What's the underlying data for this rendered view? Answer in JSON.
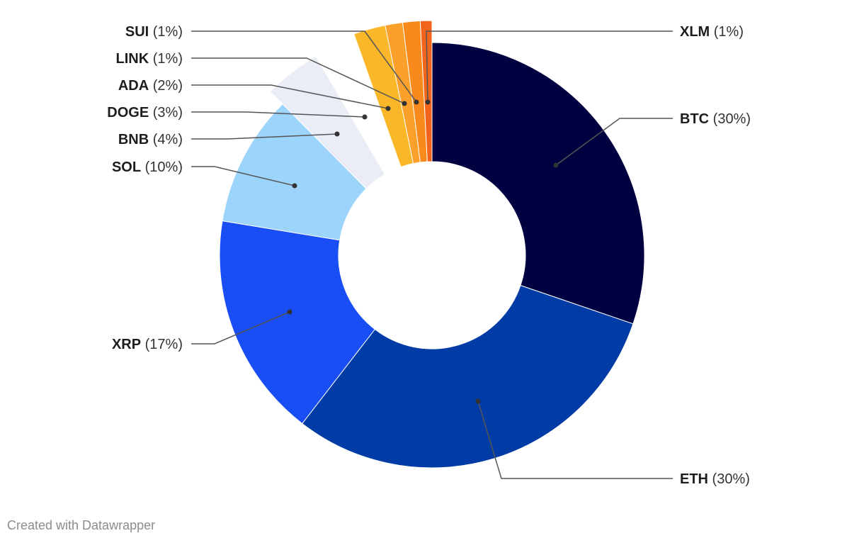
{
  "chart_data": {
    "type": "pie",
    "variant": "donut",
    "slices": [
      {
        "name": "BTC",
        "label": "(30%)",
        "value": 30.2,
        "color": "#000040"
      },
      {
        "name": "ETH",
        "label": "(30%)",
        "value": 30.2,
        "color": "#003ba6"
      },
      {
        "name": "XRP",
        "label": "(17%)",
        "value": 17.1,
        "color": "#1a4ef5"
      },
      {
        "name": "SOL",
        "label": "(10%)",
        "value": 10.0,
        "color": "#9dd4fb"
      },
      {
        "name": "BNB",
        "label": "(4%)",
        "value": 4.0,
        "color": "#ebedf6"
      },
      {
        "name": "DOGE",
        "label": "(3%)",
        "value": 3.0,
        "color": "#ffffff"
      },
      {
        "name": "ADA",
        "label": "(2%)",
        "value": 2.2,
        "color": "#fbb72a"
      },
      {
        "name": "LINK",
        "label": "(1%)",
        "value": 1.2,
        "color": "#fba02a"
      },
      {
        "name": "SUI",
        "label": "(1%)",
        "value": 1.2,
        "color": "#f8891d"
      },
      {
        "name": "XLM",
        "label": "(1%)",
        "value": 0.8,
        "color": "#f2631c"
      }
    ],
    "legend": "none",
    "labels": "external with leader lines"
  },
  "footer": {
    "text": "Created with Datawrapper"
  }
}
